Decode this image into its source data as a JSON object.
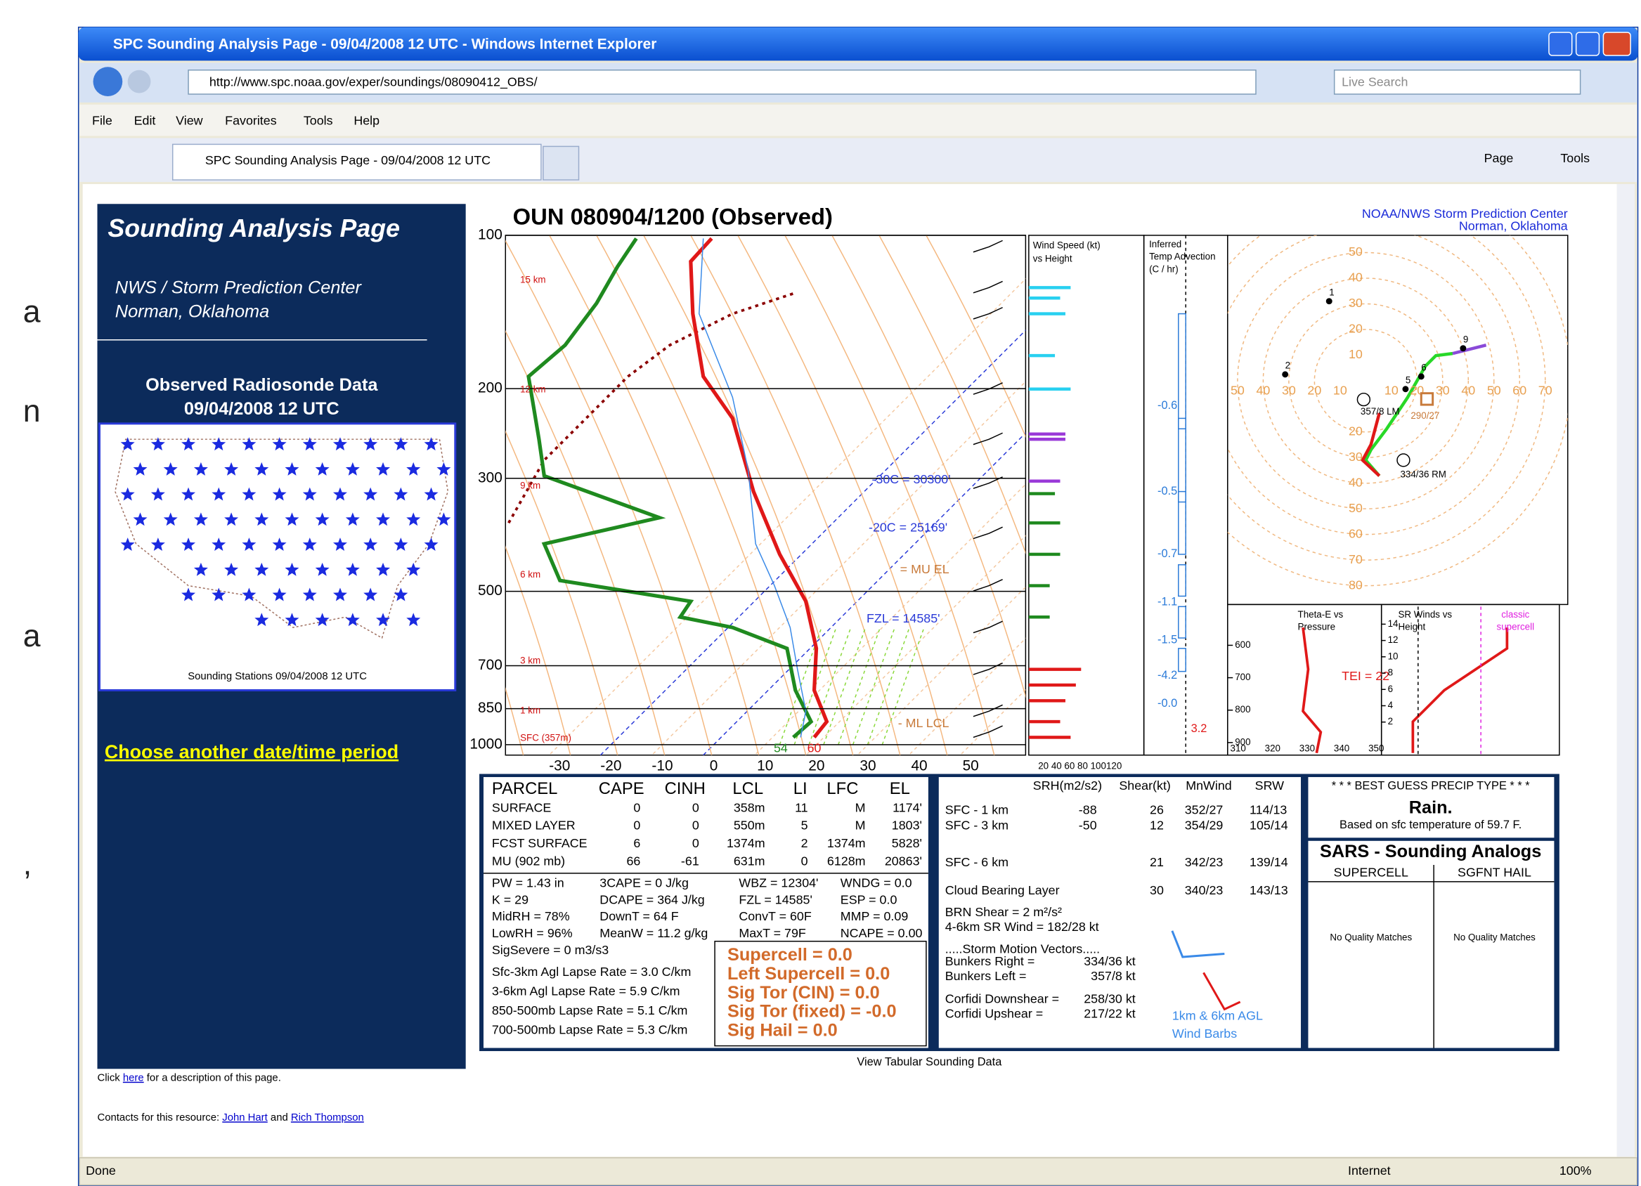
{
  "slide_fragments": [
    "a",
    "n",
    "a",
    ","
  ],
  "window": {
    "title": "SPC Sounding Analysis Page - 09/04/2008 12 UTC - Windows Internet Explorer",
    "url": "http://www.spc.noaa.gov/exper/soundings/08090412_OBS/",
    "search": "Live Search",
    "menu": [
      "File",
      "Edit",
      "View",
      "Favorites",
      "Tools",
      "Help"
    ],
    "tab": "SPC Sounding Analysis Page - 09/04/2008 12 UTC",
    "commands": [
      "Page",
      "Tools"
    ],
    "status": "Done",
    "zone": "Internet",
    "zoom": "100%"
  },
  "sidebar": {
    "title": "Sounding Analysis Page",
    "org": "NWS / Storm Prediction Center",
    "place": "Norman, Oklahoma",
    "data_title": "Observed Radiosonde Data",
    "data_date": "09/04/2008 12 UTC",
    "map_caption": "Sounding Stations 09/04/2008 12 UTC",
    "link": "Choose another date/time period"
  },
  "skewt": {
    "title": "OUN  080904/1200  (Observed)",
    "credit": [
      "NOAA/NWS Storm Prediction Center",
      "Norman, Oklahoma"
    ],
    "pressures": [
      100,
      200,
      300,
      500,
      700,
      850,
      1000
    ],
    "temps": [
      -30,
      -20,
      -10,
      0,
      10,
      20,
      30,
      40,
      50
    ],
    "heights": [
      "15 km",
      "12 km",
      "9 km",
      "6 km",
      "3 km",
      "1 km",
      "SFC (357m)"
    ],
    "annotations": [
      "-30C = 30300'",
      "-20C = 25169'",
      "= MU EL",
      "FZL = 14585'",
      "- ML LCL"
    ],
    "surface": [
      54,
      60
    ]
  },
  "wind_panel": {
    "title": [
      "Wind Speed (kt)",
      "vs Height"
    ],
    "axis": "20 40 60 80 100120"
  },
  "advection": {
    "title": [
      "Inferred",
      "Temp Advection",
      "(C / hr)"
    ],
    "values": [
      -0.6,
      -0.5,
      -0.7,
      -1.1,
      -1.5,
      -4.2,
      "-0.0",
      3.2
    ]
  },
  "hodograph": {
    "up": [
      10,
      20,
      30,
      40,
      50
    ],
    "down": [
      20,
      30,
      40,
      50,
      60,
      70,
      80
    ],
    "left": [
      50,
      40,
      30,
      20,
      10
    ],
    "right": [
      10,
      20,
      30,
      40,
      50,
      60,
      70
    ],
    "points": [
      1,
      2,
      5,
      6,
      9
    ],
    "labels": [
      "357/8 LM",
      "290/27",
      "334/36 RM"
    ]
  },
  "thetae": {
    "title": [
      "Theta-E vs",
      "Pressure"
    ],
    "pressures": [
      600,
      700,
      800,
      900
    ],
    "temps": [
      310,
      320,
      330,
      340,
      350
    ],
    "tei": "TEI = 22"
  },
  "srwinds": {
    "title": [
      "SR Winds vs",
      "Height"
    ],
    "heights": [
      14,
      12,
      10,
      8,
      6,
      4,
      2
    ],
    "note": [
      "classic",
      "supercell"
    ]
  },
  "parcel_table": {
    "header": [
      "PARCEL",
      "CAPE",
      "CINH",
      "LCL",
      "LI",
      "LFC",
      "EL"
    ],
    "rows": [
      [
        "SURFACE",
        0,
        0,
        "358m",
        11,
        "M",
        "1174'"
      ],
      [
        "MIXED LAYER",
        0,
        0,
        "550m",
        5,
        "M",
        "1803'"
      ],
      [
        "FCST SURFACE",
        6,
        0,
        "1374m",
        2,
        "1374m",
        "5828'"
      ],
      [
        "MU  (902 mb)",
        66,
        -61,
        "631m",
        0,
        "6128m",
        "20863'"
      ]
    ]
  },
  "indices": [
    [
      "PW = 1.43 in",
      "3CAPE = 0 J/kg",
      "WBZ = 12304'",
      "WNDG = 0.0"
    ],
    [
      "K = 29",
      "DCAPE = 364 J/kg",
      "FZL = 14585'",
      "ESP = 0.0"
    ],
    [
      "MidRH = 78%",
      "DownT = 64 F",
      "ConvT = 60F",
      "MMP = 0.09"
    ],
    [
      "LowRH = 96%",
      "MeanW = 11.2 g/kg",
      "MaxT = 79F",
      "NCAPE = 0.00"
    ],
    [
      "SigSevere = 0 m3/s3"
    ]
  ],
  "lapse_rates": [
    "Sfc-3km Agl Lapse Rate =  3.0 C/km",
    "3-6km Agl Lapse Rate =    5.9 C/km",
    "850-500mb Lapse Rate = 5.1 C/km",
    "700-500mb Lapse Rate = 5.3 C/km"
  ],
  "composites": [
    "Supercell = 0.0",
    "Left Supercell = 0.0",
    "Sig Tor (CIN) = 0.0",
    "Sig Tor (fixed) = -0.0",
    "Sig Hail = 0.0"
  ],
  "kinematics": {
    "header": [
      "SRH(m2/s2)",
      "Shear(kt)",
      "MnWind",
      "SRW"
    ],
    "rows": [
      {
        "label": "SFC - 1 km",
        "srh": -88,
        "shear": 26,
        "mnwind": "352/27",
        "srw": "114/13"
      },
      {
        "label": "SFC - 3 km",
        "srh": -50,
        "shear": 12,
        "mnwind": "354/29",
        "srw": "105/14"
      },
      {
        "label": "SFC - 6 km",
        "shear": 21,
        "mnwind": "342/23",
        "srw": "139/14"
      },
      {
        "label": "Cloud Bearing Layer",
        "shear": 30,
        "mnwind": "340/23",
        "srw": "143/13"
      }
    ],
    "other": [
      "BRN Shear =  2 m²/s²",
      "4-6km SR Wind =       182/28 kt"
    ],
    "motion_title": ".....Storm Motion Vectors.....",
    "motion": [
      [
        "Bunkers Right =",
        "334/36 kt"
      ],
      [
        "Bunkers Left =",
        "357/8 kt"
      ],
      [
        "Corfidi Downshear =",
        "258/30 kt"
      ],
      [
        "Corfidi Upshear =",
        "217/22 kt"
      ]
    ],
    "barbs": [
      "1km & 6km AGL",
      "Wind Barbs"
    ]
  },
  "precip": {
    "title": "* * * BEST GUESS PRECIP TYPE * * *",
    "type": "Rain.",
    "note": "Based on sfc temperature of 59.7 F."
  },
  "sars": {
    "title": "SARS - Sounding Analogs",
    "columns": [
      "SUPERCELL",
      "SGFNT HAIL"
    ],
    "results": [
      "No Quality Matches",
      "No Quality Matches"
    ]
  },
  "footer": {
    "tabular": "View Tabular Sounding Data",
    "description": [
      "Click ",
      "here",
      " for a description of this page."
    ],
    "contacts": [
      "Contacts for this resource: ",
      "John Hart",
      " and ",
      "Rich Thompson"
    ]
  }
}
